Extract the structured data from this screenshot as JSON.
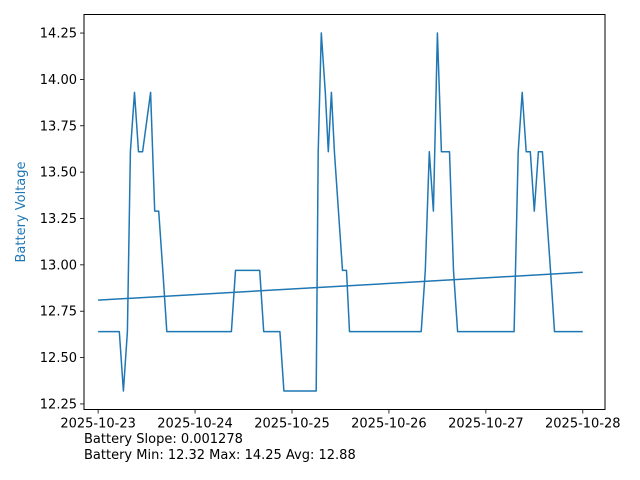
{
  "chart_data": {
    "type": "line",
    "title": "",
    "xlabel": "",
    "ylabel": "Battery Voltage",
    "ylabel_color": "#1f77b4",
    "series_color": "#1f77b4",
    "grid": false,
    "xlim": [
      "2025-10-22T20:30",
      "2025-10-28T05:30"
    ],
    "ylim": [
      12.22,
      14.35
    ],
    "x_ticks": [
      "2025-10-23",
      "2025-10-24",
      "2025-10-25",
      "2025-10-26",
      "2025-10-27",
      "2025-10-28"
    ],
    "y_ticks": [
      "12.25",
      "12.50",
      "12.75",
      "13.00",
      "13.25",
      "13.50",
      "13.75",
      "14.00",
      "14.25"
    ],
    "series": [
      {
        "points": [
          [
            "2025-10-23T00:00",
            12.64
          ],
          [
            "2025-10-23T05:15",
            12.64
          ],
          [
            "2025-10-23T06:15",
            12.32
          ],
          [
            "2025-10-23T07:15",
            12.64
          ],
          [
            "2025-10-23T08:00",
            13.61
          ],
          [
            "2025-10-23T09:00",
            13.93
          ],
          [
            "2025-10-23T10:00",
            13.61
          ],
          [
            "2025-10-23T11:00",
            13.61
          ],
          [
            "2025-10-23T13:00",
            13.93
          ],
          [
            "2025-10-23T14:00",
            13.29
          ],
          [
            "2025-10-23T15:00",
            13.29
          ],
          [
            "2025-10-23T16:00",
            12.97
          ],
          [
            "2025-10-23T17:00",
            12.64
          ],
          [
            "2025-10-24T09:00",
            12.64
          ],
          [
            "2025-10-24T10:00",
            12.97
          ],
          [
            "2025-10-24T16:00",
            12.97
          ],
          [
            "2025-10-24T17:00",
            12.64
          ],
          [
            "2025-10-24T21:00",
            12.64
          ],
          [
            "2025-10-24T22:00",
            12.32
          ],
          [
            "2025-10-25T06:00",
            12.32
          ],
          [
            "2025-10-25T06:30",
            13.61
          ],
          [
            "2025-10-25T07:15",
            14.25
          ],
          [
            "2025-10-25T08:15",
            13.93
          ],
          [
            "2025-10-25T09:00",
            13.61
          ],
          [
            "2025-10-25T09:45",
            13.93
          ],
          [
            "2025-10-25T10:30",
            13.61
          ],
          [
            "2025-10-25T12:30",
            12.97
          ],
          [
            "2025-10-25T13:30",
            12.97
          ],
          [
            "2025-10-25T14:15",
            12.64
          ],
          [
            "2025-10-26T08:00",
            12.64
          ],
          [
            "2025-10-26T09:00",
            12.97
          ],
          [
            "2025-10-26T10:00",
            13.61
          ],
          [
            "2025-10-26T11:00",
            13.29
          ],
          [
            "2025-10-26T12:00",
            14.25
          ],
          [
            "2025-10-26T13:00",
            13.61
          ],
          [
            "2025-10-26T15:00",
            13.61
          ],
          [
            "2025-10-26T16:00",
            12.97
          ],
          [
            "2025-10-26T17:00",
            12.64
          ],
          [
            "2025-10-27T07:00",
            12.64
          ],
          [
            "2025-10-27T08:00",
            13.61
          ],
          [
            "2025-10-27T09:00",
            13.93
          ],
          [
            "2025-10-27T10:00",
            13.61
          ],
          [
            "2025-10-27T11:00",
            13.61
          ],
          [
            "2025-10-27T12:00",
            13.29
          ],
          [
            "2025-10-27T13:00",
            13.61
          ],
          [
            "2025-10-27T14:00",
            13.61
          ],
          [
            "2025-10-27T15:00",
            13.29
          ],
          [
            "2025-10-27T16:00",
            12.97
          ],
          [
            "2025-10-27T17:00",
            12.64
          ],
          [
            "2025-10-28T00:00",
            12.64
          ]
        ]
      },
      {
        "points": [
          [
            "2025-10-23T00:00",
            12.81
          ],
          [
            "2025-10-28T00:00",
            12.96
          ]
        ]
      }
    ]
  },
  "stats": {
    "slope_text": "Battery Slope: 0.001278",
    "minmax_text": "Battery Min: 12.32 Max: 14.25 Avg: 12.88"
  }
}
